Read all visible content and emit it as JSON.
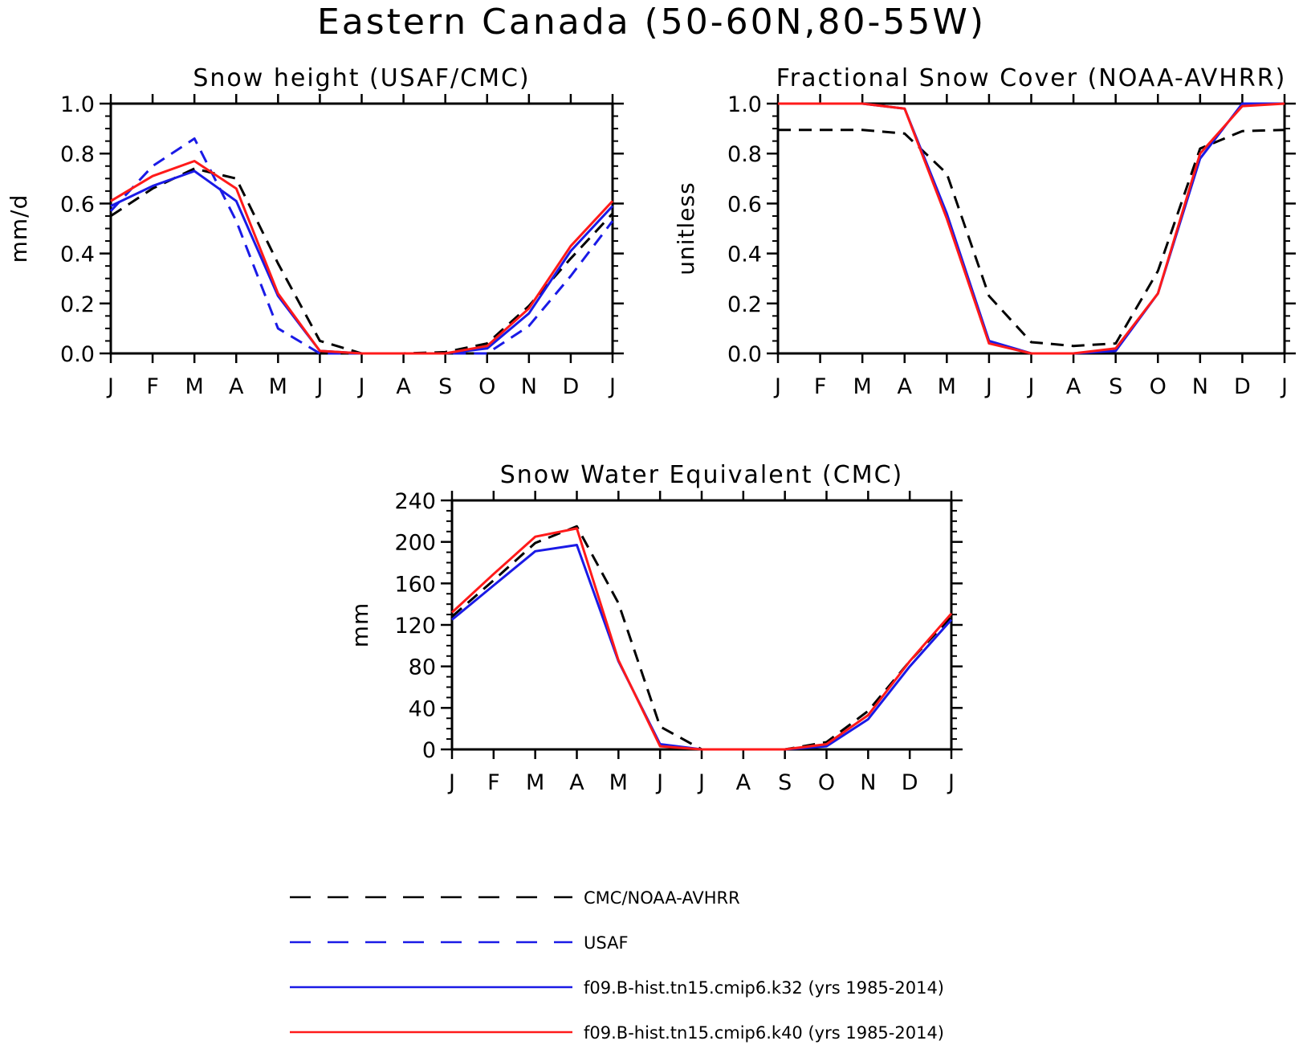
{
  "figure": {
    "title": "Eastern Canada (50-60N,80-55W)"
  },
  "series_styles": [
    {
      "name": "CMC/NOAA-AVHRR",
      "color": "#000000",
      "dashed": true
    },
    {
      "name": "USAF",
      "color": "#1a1ae6",
      "dashed": true
    },
    {
      "name": "f09.B-hist.tn15.cmip6.k32 (yrs 1985-2014)",
      "color": "#1a1ae6",
      "dashed": false
    },
    {
      "name": "f09.B-hist.tn15.cmip6.k40 (yrs 1985-2014)",
      "color": "#ff1a1a",
      "dashed": false
    }
  ],
  "chart_data": [
    {
      "type": "line",
      "title": "Snow height (USAF/CMC)",
      "xlabel": "",
      "ylabel": "mm/d",
      "categories": [
        "J",
        "F",
        "M",
        "A",
        "M",
        "J",
        "J",
        "A",
        "S",
        "O",
        "N",
        "D",
        "J"
      ],
      "ylim": [
        0,
        1.0
      ],
      "yticks": [
        0.0,
        0.2,
        0.4,
        0.6,
        0.8,
        1.0
      ],
      "ytick_labels": [
        "0.0",
        "0.2",
        "0.4",
        "0.6",
        "0.8",
        "1.0"
      ],
      "series": [
        {
          "name": "CMC/NOAA-AVHRR",
          "values": [
            0.55,
            0.66,
            0.74,
            0.7,
            0.36,
            0.05,
            0.0,
            0.0,
            0.005,
            0.04,
            0.19,
            0.38,
            0.56
          ]
        },
        {
          "name": "USAF",
          "values": [
            0.57,
            0.75,
            0.86,
            0.53,
            0.1,
            0.0,
            0.0,
            0.0,
            0.0,
            0.0,
            0.11,
            0.31,
            0.53
          ]
        },
        {
          "name": "f09.B-hist.tn15.cmip6.k32 (yrs 1985-2014)",
          "values": [
            0.59,
            0.67,
            0.73,
            0.61,
            0.23,
            0.01,
            0.0,
            0.0,
            0.0,
            0.02,
            0.16,
            0.41,
            0.59
          ]
        },
        {
          "name": "f09.B-hist.tn15.cmip6.k40 (yrs 1985-2014)",
          "values": [
            0.61,
            0.71,
            0.77,
            0.66,
            0.24,
            0.01,
            0.0,
            0.0,
            0.0,
            0.03,
            0.18,
            0.43,
            0.61
          ]
        }
      ]
    },
    {
      "type": "line",
      "title": "Fractional Snow Cover (NOAA-AVHRR)",
      "xlabel": "",
      "ylabel": "unitless",
      "categories": [
        "J",
        "F",
        "M",
        "A",
        "M",
        "J",
        "J",
        "A",
        "S",
        "O",
        "N",
        "D",
        "J"
      ],
      "ylim": [
        0,
        1.0
      ],
      "yticks": [
        0.0,
        0.2,
        0.4,
        0.6,
        0.8,
        1.0
      ],
      "ytick_labels": [
        "0.0",
        "0.2",
        "0.4",
        "0.6",
        "0.8",
        "1.0"
      ],
      "series": [
        {
          "name": "CMC/NOAA-AVHRR",
          "values": [
            0.895,
            0.895,
            0.895,
            0.88,
            0.72,
            0.23,
            0.045,
            0.03,
            0.04,
            0.33,
            0.82,
            0.89,
            0.895
          ]
        },
        {
          "name": "f09.B-hist.tn15.cmip6.k32 (yrs 1985-2014)",
          "values": [
            1.0,
            1.0,
            1.0,
            0.98,
            0.56,
            0.05,
            0.0,
            0.0,
            0.01,
            0.24,
            0.78,
            1.0,
            1.0
          ]
        },
        {
          "name": "f09.B-hist.tn15.cmip6.k40 (yrs 1985-2014)",
          "values": [
            1.0,
            1.0,
            1.0,
            0.98,
            0.54,
            0.04,
            0.0,
            0.0,
            0.02,
            0.24,
            0.8,
            0.99,
            1.0
          ]
        }
      ]
    },
    {
      "type": "line",
      "title": "Snow Water Equivalent (CMC)",
      "xlabel": "",
      "ylabel": "mm",
      "categories": [
        "J",
        "F",
        "M",
        "A",
        "M",
        "J",
        "J",
        "A",
        "S",
        "O",
        "N",
        "D",
        "J"
      ],
      "ylim": [
        0,
        240
      ],
      "yticks": [
        0,
        40,
        80,
        120,
        160,
        200,
        240
      ],
      "ytick_labels": [
        "0",
        "40",
        "80",
        "120",
        "160",
        "200",
        "240"
      ],
      "series": [
        {
          "name": "CMC/NOAA-AVHRR",
          "values": [
            128,
            163,
            199,
            215,
            141,
            22,
            0,
            0,
            0,
            7,
            37,
            85,
            128
          ]
        },
        {
          "name": "f09.B-hist.tn15.cmip6.k32 (yrs 1985-2014)",
          "values": [
            125,
            158,
            191,
            197,
            85,
            5,
            0,
            0,
            0,
            3,
            29,
            80,
            125
          ]
        },
        {
          "name": "f09.B-hist.tn15.cmip6.k40 (yrs 1985-2014)",
          "values": [
            132,
            169,
            205,
            213,
            86,
            3,
            0,
            0,
            0,
            5,
            33,
            85,
            131
          ]
        }
      ]
    }
  ],
  "legend": [
    {
      "label": "CMC/NOAA-AVHRR",
      "color": "#000000",
      "dashed": true
    },
    {
      "label": "USAF",
      "color": "#1a1ae6",
      "dashed": true
    },
    {
      "label": "f09.B-hist.tn15.cmip6.k32 (yrs 1985-2014)",
      "color": "#1a1ae6",
      "dashed": false
    },
    {
      "label": "f09.B-hist.tn15.cmip6.k40 (yrs 1985-2014)",
      "color": "#ff1a1a",
      "dashed": false
    }
  ]
}
